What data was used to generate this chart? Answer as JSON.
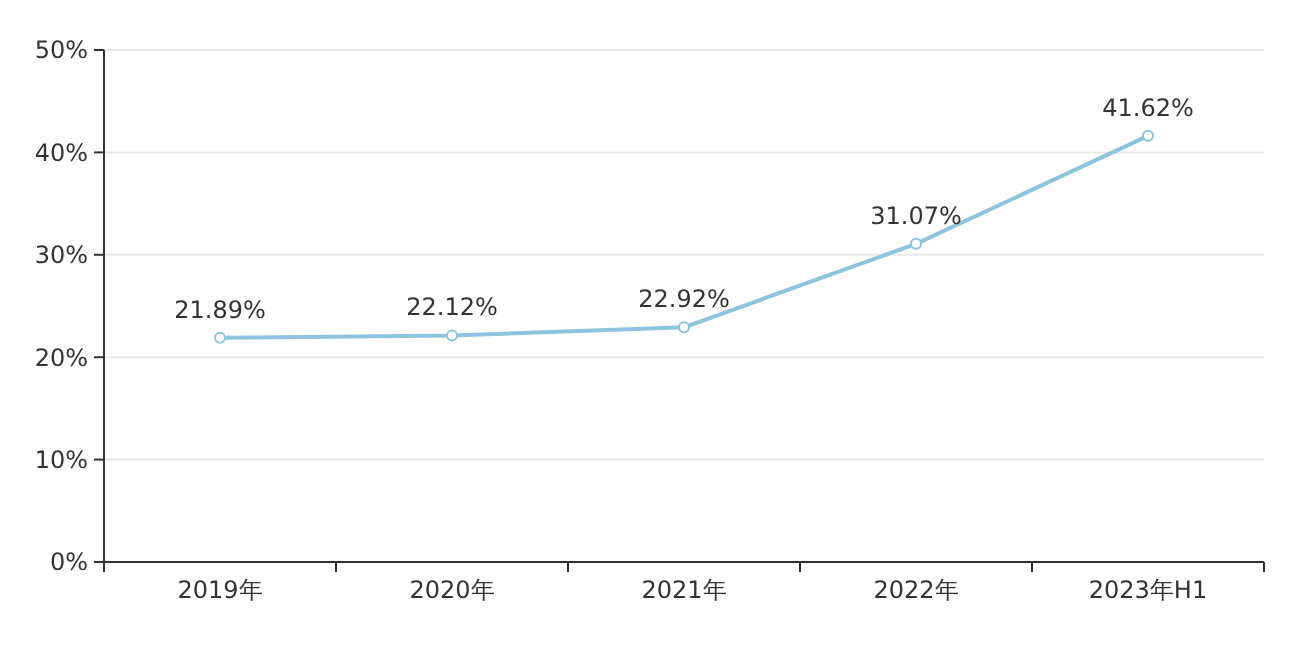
{
  "chart_data": {
    "type": "line",
    "categories": [
      "2019年",
      "2020年",
      "2021年",
      "2022年",
      "2023年H1"
    ],
    "series": [
      {
        "color": "#8dc3dd",
        "values": [
          21.89,
          22.12,
          22.92,
          31.07,
          41.62
        ],
        "value_labels": [
          "21.89%",
          "22.12%",
          "22.92%",
          "31.07%",
          "41.62%"
        ]
      }
    ],
    "ylim": [
      0,
      50
    ],
    "yticks": [
      {
        "value": 0,
        "label": "0%"
      },
      {
        "value": 10,
        "label": "10%"
      },
      {
        "value": 20,
        "label": "20%"
      },
      {
        "value": 30,
        "label": "30%"
      },
      {
        "value": 40,
        "label": "40%"
      },
      {
        "value": 50,
        "label": "50%"
      }
    ],
    "grid": "y",
    "marker": "circle",
    "line_style": "solid"
  }
}
